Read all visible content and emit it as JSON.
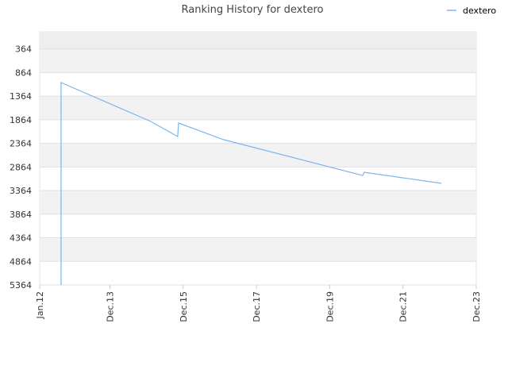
{
  "chart_data": {
    "type": "line",
    "title": "Ranking History for dextero",
    "series": [
      {
        "name": "dextero",
        "color": "#7cb5ec",
        "x": [
          7,
          7,
          36.4,
          45.2,
          45.5,
          60.3,
          105.8,
          106.3,
          131.6
        ],
        "values": [
          5364,
          1076,
          1900,
          2220,
          1934,
          2287,
          3044,
          2976,
          3212
        ]
      }
    ],
    "xlim": [
      0,
      143
    ],
    "xticks": [
      {
        "value": 0,
        "label": "Jan.12"
      },
      {
        "value": 23,
        "label": "Dec.13"
      },
      {
        "value": 47,
        "label": "Dec.15"
      },
      {
        "value": 71,
        "label": "Dec.17"
      },
      {
        "value": 95,
        "label": "Dec.19"
      },
      {
        "value": 119,
        "label": "Dec.21"
      },
      {
        "value": 143,
        "label": "Dec.23"
      }
    ],
    "ylim": [
      5364,
      0
    ],
    "yticks": [
      364,
      864,
      1364,
      1864,
      2364,
      2864,
      3364,
      3864,
      4364,
      4864,
      5364
    ],
    "grid": true,
    "legend": "top-right"
  }
}
